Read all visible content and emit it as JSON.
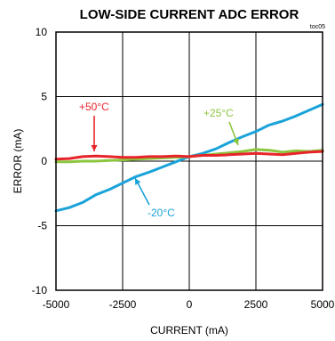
{
  "chart_data": {
    "type": "line",
    "title": "LOW-SIDE CURRENT ADC ERROR",
    "tag": "toc05",
    "xlabel": "CURRENT (mA)",
    "ylabel": "ERROR (mA)",
    "xlim": [
      -5000,
      5000
    ],
    "ylim": [
      -10,
      10
    ],
    "x_ticks": [
      -5000,
      -2500,
      0,
      2500,
      5000
    ],
    "y_ticks": [
      10,
      5,
      0,
      -5,
      -10
    ],
    "x_tick_labels": [
      "-5000",
      "-2500",
      "0",
      "2500",
      "5000"
    ],
    "y_tick_labels": [
      "10",
      "5",
      "0",
      "-5",
      "-10"
    ],
    "grid": true,
    "series": [
      {
        "name": "+50°C",
        "color": "#e8242a",
        "x": [
          -5000,
          -4500,
          -4000,
          -3500,
          -3000,
          -2500,
          -2000,
          -1500,
          -1000,
          -500,
          0,
          500,
          1000,
          1500,
          2000,
          2500,
          3000,
          3500,
          4000,
          4500,
          5000
        ],
        "y": [
          0.15,
          0.2,
          0.35,
          0.4,
          0.35,
          0.3,
          0.3,
          0.35,
          0.35,
          0.4,
          0.35,
          0.45,
          0.45,
          0.5,
          0.55,
          0.6,
          0.55,
          0.5,
          0.6,
          0.7,
          0.75
        ]
      },
      {
        "name": "+25°C",
        "color": "#8cc63e",
        "x": [
          -5000,
          -4500,
          -4000,
          -3500,
          -3000,
          -2500,
          -2000,
          -1500,
          -1000,
          -500,
          0,
          500,
          1000,
          1500,
          2000,
          2500,
          3000,
          3500,
          4000,
          4500,
          5000
        ],
        "y": [
          -0.05,
          -0.05,
          0.0,
          0.0,
          0.05,
          0.1,
          0.15,
          0.2,
          0.25,
          0.3,
          0.35,
          0.45,
          0.55,
          0.65,
          0.75,
          0.9,
          0.85,
          0.7,
          0.8,
          0.75,
          0.85
        ]
      },
      {
        "name": "-20°C",
        "color": "#1aa3d9",
        "x": [
          -5000,
          -4500,
          -4000,
          -3500,
          -3000,
          -2500,
          -2000,
          -1500,
          -1000,
          -500,
          0,
          500,
          1000,
          1500,
          2000,
          2500,
          3000,
          3500,
          4000,
          4500,
          5000
        ],
        "y": [
          -3.85,
          -3.6,
          -3.2,
          -2.6,
          -2.2,
          -1.7,
          -1.2,
          -0.85,
          -0.45,
          -0.05,
          0.35,
          0.6,
          0.95,
          1.45,
          1.9,
          2.3,
          2.8,
          3.1,
          3.5,
          3.95,
          4.4
        ]
      }
    ],
    "annotations": [
      {
        "text": "+50°C",
        "color": "#e8242a"
      },
      {
        "text": "+25°C",
        "color": "#8cc63e"
      },
      {
        "text": "-20°C",
        "color": "#1aa3d9"
      }
    ]
  }
}
